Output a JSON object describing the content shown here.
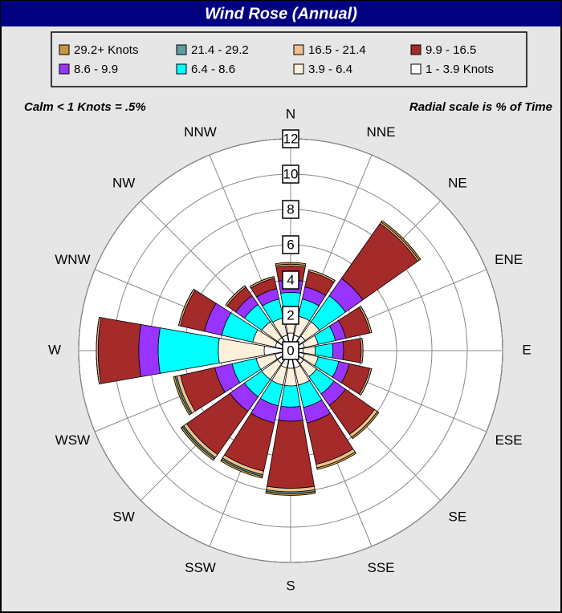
{
  "chart_data": {
    "type": "windrose",
    "title": "Wind Rose  (Annual)",
    "note_left": "Calm <  1 Knots = .5%",
    "note_right": "Radial scale is % of Time",
    "categories": [
      "N",
      "NNE",
      "NE",
      "ENE",
      "E",
      "ESE",
      "SE",
      "SSE",
      "S",
      "SSW",
      "SW",
      "WSW",
      "W",
      "WNW",
      "NW",
      "NNW"
    ],
    "rlim": [
      0,
      12
    ],
    "rticks": [
      0,
      2,
      4,
      6,
      8,
      10,
      12
    ],
    "grid": true,
    "series": [
      {
        "name": "29.2+ Knots",
        "color": "#c8963c",
        "values": [
          0.1,
          0,
          0.1,
          0,
          0,
          0,
          0.1,
          0.1,
          0.1,
          0.1,
          0.1,
          0.1,
          0,
          0,
          0,
          0
        ]
      },
      {
        "name": "21.4 - 29.2",
        "color": "#5f9ea0",
        "values": [
          0,
          0,
          0,
          0,
          0,
          0,
          0,
          0,
          0.1,
          0.1,
          0.1,
          0.1,
          0,
          0,
          0,
          0
        ]
      },
      {
        "name": "16.5 - 21.4",
        "color": "#f0c090",
        "values": [
          0.1,
          0.1,
          0.1,
          0.1,
          0.1,
          0.1,
          0.2,
          0.2,
          0.2,
          0.2,
          0.2,
          0.2,
          0.1,
          0.1,
          0.1,
          0.1
        ]
      },
      {
        "name": "9.9 - 16.5",
        "color": "#a52a2a",
        "values": [
          0.8,
          0.9,
          3.8,
          1.4,
          1.0,
          1.2,
          2.0,
          2.4,
          3.8,
          2.8,
          3.0,
          2.0,
          2.3,
          1.4,
          0.6,
          0.6
        ]
      },
      {
        "name": "8.6 - 9.9",
        "color": "#9933ff",
        "values": [
          0.7,
          0.7,
          1.2,
          0.6,
          0.6,
          0.6,
          0.8,
          0.9,
          0.8,
          1.0,
          1.0,
          1.0,
          1.1,
          1.0,
          0.6,
          0.6
        ]
      },
      {
        "name": "6.4 - 8.6",
        "color": "#00ffff",
        "values": [
          1.2,
          1.0,
          1.8,
          1.0,
          1.0,
          1.2,
          1.2,
          1.3,
          1.2,
          1.2,
          1.2,
          1.4,
          3.4,
          1.8,
          1.2,
          1.1
        ]
      },
      {
        "name": "3.9 - 6.4",
        "color": "#fff0dc",
        "values": [
          1.1,
          1.1,
          1.0,
          0.8,
          0.7,
          0.8,
          0.9,
          1.0,
          1.0,
          1.0,
          1.1,
          1.1,
          2.6,
          1.3,
          1.1,
          1.0
        ]
      },
      {
        "name": "1 - 3.9 Knots",
        "color": "#ffffff",
        "values": [
          1.0,
          0.9,
          1.0,
          0.8,
          0.7,
          0.8,
          0.9,
          1.0,
          1.0,
          1.0,
          0.9,
          0.9,
          1.5,
          0.9,
          0.9,
          0.9
        ]
      }
    ]
  }
}
